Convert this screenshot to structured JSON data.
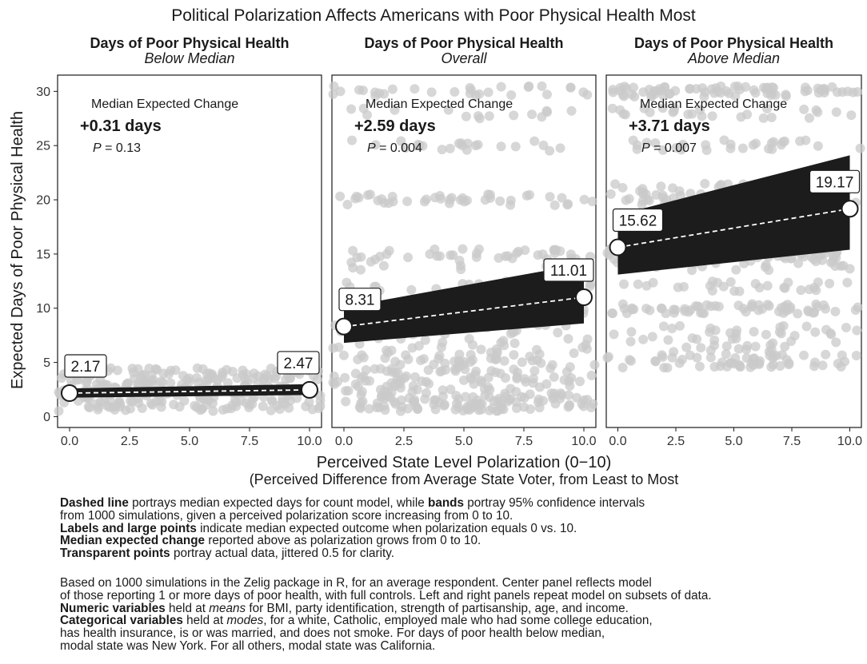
{
  "title": "Political Polarization Affects Americans with Poor Physical Health Most",
  "chart_data": [
    {
      "type": "line",
      "panel": "left",
      "title": "Days of Poor Physical Health",
      "subtitle": "Below Median",
      "x": [
        0,
        10
      ],
      "median": [
        2.17,
        2.47
      ],
      "band_lower": [
        1.75,
        2.0
      ],
      "band_upper": [
        2.6,
        3.0
      ],
      "endpoint_labels": [
        "2.17",
        "2.47"
      ],
      "annotation": {
        "heading": "Median Expected Change",
        "change": "+0.31 days",
        "p_label": "P",
        "p_value": " = 0.13"
      },
      "points_range": [
        0.5,
        4.8
      ],
      "xlim": [
        -0.5,
        10.5
      ],
      "ylim": [
        -1,
        31.5
      ]
    },
    {
      "type": "line",
      "panel": "center",
      "title": "Days of Poor Physical Health",
      "subtitle": "Overall",
      "x": [
        0,
        10
      ],
      "median": [
        8.31,
        11.01
      ],
      "band_lower": [
        6.8,
        8.6
      ],
      "band_upper": [
        10.1,
        14.1
      ],
      "endpoint_labels": [
        "8.31",
        "11.01"
      ],
      "annotation": {
        "heading": "Median Expected Change",
        "change": "+2.59 days",
        "p_label": "P",
        "p_value": " = 0.004"
      },
      "points_range": [
        0.5,
        30.5
      ],
      "xlim": [
        -0.5,
        10.5
      ],
      "ylim": [
        -1,
        31.5
      ]
    },
    {
      "type": "line",
      "panel": "right",
      "title": "Days of Poor Physical Health",
      "subtitle": "Above Median",
      "x": [
        0,
        10
      ],
      "median": [
        15.62,
        19.17
      ],
      "band_lower": [
        13.1,
        15.4
      ],
      "band_upper": [
        18.6,
        24.1
      ],
      "endpoint_labels": [
        "15.62",
        "19.17"
      ],
      "annotation": {
        "heading": "Median Expected Change",
        "change": "+3.71 days",
        "p_label": "P",
        "p_value": " = 0.007"
      },
      "points_range": [
        4.5,
        30.5
      ],
      "xlim": [
        -0.5,
        10.5
      ],
      "ylim": [
        -1,
        31.5
      ]
    }
  ],
  "axes": {
    "y_label": "Expected Days of Poor Physical Health",
    "y_ticks": [
      "0",
      "5",
      "10",
      "15",
      "20",
      "25",
      "30"
    ],
    "x_ticks": [
      "0.0",
      "2.5",
      "5.0",
      "7.5",
      "10.0"
    ],
    "x_label": "Perceived State Level Polarization (0−10)",
    "x_sublabel": "(Perceived Difference from Average State Voter, from Least to Most"
  },
  "notes": {
    "dashed_line": "Dashed line",
    "line1_a": " portrays median expected days for count model, while ",
    "bands": "bands",
    "line1_b": " portray 95% confidence intervals",
    "line2": "from 1000 simulations, given a perceived polarization score increasing from 0 to 10.",
    "labels_points": "Labels and large points",
    "line3": " indicate median expected outcome when polarization equals 0 vs. 10.",
    "median_change": "Median expected change",
    "line4": " reported above as polarization grows from 0 to 10.",
    "transparent_points": "Transparent points",
    "line5": " portray actual data, jittered 0.5 for clarity.",
    "p2_line1": "Based on 1000 simulations in the Zelig package in R, for an average respondent. Center panel reflects model",
    "p2_line2": "of those reporting 1 or more days of poor health, with full controls. Left and right panels repeat model on subsets of data.",
    "numeric_vars": "Numeric variables",
    "p2_line3a": " held at ",
    "means": "means",
    "p2_line3b": " for BMI, party identification, strength of partisanship, age, and income.",
    "categorical_vars": "Categorical variables",
    "p2_line4a": " held at ",
    "modes": "modes",
    "p2_line4b": ", for a white, Catholic, employed male who had some college education,",
    "p2_line5": "has health insurance, is or was married, and does not smoke. For days of poor health below median,",
    "p2_line6": "modal state was New York. For all others, modal state was California."
  }
}
